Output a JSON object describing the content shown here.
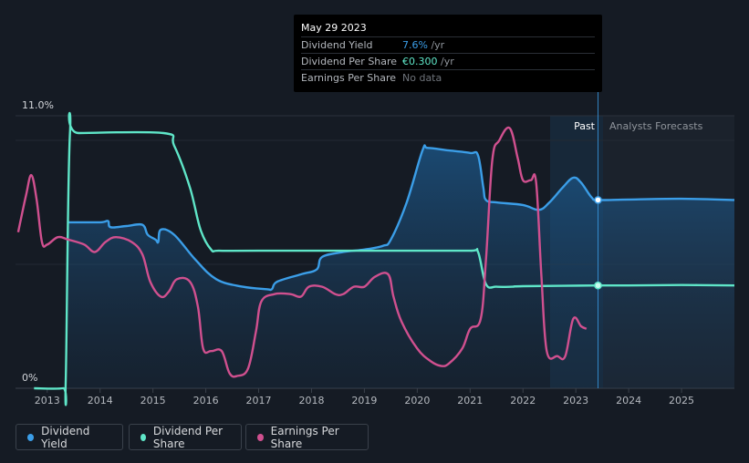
{
  "tooltip": {
    "date": "May 29 2023",
    "rows": [
      {
        "label": "Dividend Yield",
        "value": "7.6%",
        "unit": "/yr",
        "color": "#3b9ee8"
      },
      {
        "label": "Dividend Per Share",
        "value": "€0.300",
        "unit": "/yr",
        "color": "#5fe6c8"
      },
      {
        "label": "Earnings Per Share",
        "value": "No data",
        "unit": "",
        "color": "#8a8f96"
      }
    ]
  },
  "legend": [
    {
      "label": "Dividend Yield",
      "color": "#3b9ee8"
    },
    {
      "label": "Dividend Per Share",
      "color": "#5fe6c8"
    },
    {
      "label": "Earnings Per Share",
      "color": "#d0508f"
    }
  ],
  "chart_data": {
    "type": "line",
    "title": "",
    "y_top_label": "11.0%",
    "y_bottom_label": "0%",
    "ylim": [
      0,
      11
    ],
    "xlim": [
      2012.4,
      2026.0
    ],
    "x_ticks": [
      "2013",
      "2014",
      "2015",
      "2016",
      "2017",
      "2018",
      "2019",
      "2020",
      "2021",
      "2022",
      "2023",
      "2024",
      "2025"
    ],
    "region_past_label": "Past",
    "region_forecast_label": "Analysts Forecasts",
    "past_region": [
      2022.4,
      2023.42
    ],
    "marker_x": 2023.42,
    "series": [
      {
        "name": "Dividend Yield",
        "color": "#3b9ee8",
        "fill": true,
        "points": [
          [
            2013.4,
            6.7
          ],
          [
            2014.0,
            6.7
          ],
          [
            2014.15,
            6.75
          ],
          [
            2014.2,
            6.5
          ],
          [
            2014.5,
            6.55
          ],
          [
            2014.8,
            6.6
          ],
          [
            2014.9,
            6.2
          ],
          [
            2015.05,
            6.0
          ],
          [
            2015.1,
            5.9
          ],
          [
            2015.15,
            6.4
          ],
          [
            2015.4,
            6.2
          ],
          [
            2015.8,
            5.2
          ],
          [
            2016.2,
            4.4
          ],
          [
            2016.7,
            4.1
          ],
          [
            2017.15,
            4.0
          ],
          [
            2017.25,
            4.0
          ],
          [
            2017.35,
            4.3
          ],
          [
            2017.8,
            4.6
          ],
          [
            2018.1,
            4.8
          ],
          [
            2018.2,
            5.3
          ],
          [
            2018.6,
            5.5
          ],
          [
            2019.0,
            5.6
          ],
          [
            2019.35,
            5.75
          ],
          [
            2019.5,
            6.0
          ],
          [
            2019.8,
            7.5
          ],
          [
            2020.1,
            9.6
          ],
          [
            2020.2,
            9.7
          ],
          [
            2020.6,
            9.6
          ],
          [
            2021.0,
            9.5
          ],
          [
            2021.15,
            9.4
          ],
          [
            2021.25,
            8.1
          ],
          [
            2021.3,
            7.6
          ],
          [
            2021.5,
            7.5
          ],
          [
            2022.0,
            7.4
          ],
          [
            2022.3,
            7.2
          ],
          [
            2022.5,
            7.5
          ],
          [
            2022.75,
            8.1
          ],
          [
            2022.95,
            8.5
          ],
          [
            2023.1,
            8.3
          ],
          [
            2023.3,
            7.7
          ],
          [
            2023.42,
            7.6
          ],
          [
            2024.0,
            7.62
          ],
          [
            2025.0,
            7.65
          ],
          [
            2026.0,
            7.6
          ]
        ]
      },
      {
        "name": "Dividend Per Share",
        "color": "#5fe6c8",
        "fill": false,
        "points": [
          [
            2012.75,
            0
          ],
          [
            2013.3,
            0
          ],
          [
            2013.35,
            0.2
          ],
          [
            2013.43,
            10.3
          ],
          [
            2013.6,
            10.3
          ],
          [
            2015.2,
            10.3
          ],
          [
            2015.4,
            9.8
          ],
          [
            2015.7,
            8.1
          ],
          [
            2015.9,
            6.4
          ],
          [
            2016.1,
            5.6
          ],
          [
            2016.25,
            5.55
          ],
          [
            2017.0,
            5.55
          ],
          [
            2020.0,
            5.55
          ],
          [
            2021.0,
            5.55
          ],
          [
            2021.15,
            5.5
          ],
          [
            2021.3,
            4.2
          ],
          [
            2021.5,
            4.1
          ],
          [
            2021.8,
            4.1
          ],
          [
            2022.0,
            4.12
          ],
          [
            2023.42,
            4.15
          ],
          [
            2024.0,
            4.15
          ],
          [
            2025.0,
            4.17
          ],
          [
            2026.0,
            4.15
          ]
        ]
      },
      {
        "name": "Earnings Per Share",
        "color": "#d0508f",
        "fill": false,
        "points": [
          [
            2012.45,
            6.3
          ],
          [
            2012.6,
            7.8
          ],
          [
            2012.7,
            8.6
          ],
          [
            2012.8,
            7.6
          ],
          [
            2012.9,
            5.9
          ],
          [
            2013.0,
            5.8
          ],
          [
            2013.2,
            6.1
          ],
          [
            2013.4,
            6.0
          ],
          [
            2013.7,
            5.8
          ],
          [
            2013.9,
            5.5
          ],
          [
            2014.1,
            5.9
          ],
          [
            2014.3,
            6.1
          ],
          [
            2014.6,
            5.9
          ],
          [
            2014.8,
            5.4
          ],
          [
            2014.95,
            4.3
          ],
          [
            2015.15,
            3.7
          ],
          [
            2015.3,
            3.9
          ],
          [
            2015.45,
            4.4
          ],
          [
            2015.7,
            4.3
          ],
          [
            2015.85,
            3.3
          ],
          [
            2015.95,
            1.6
          ],
          [
            2016.1,
            1.5
          ],
          [
            2016.3,
            1.5
          ],
          [
            2016.45,
            0.6
          ],
          [
            2016.6,
            0.5
          ],
          [
            2016.8,
            0.8
          ],
          [
            2016.95,
            2.3
          ],
          [
            2017.05,
            3.5
          ],
          [
            2017.3,
            3.8
          ],
          [
            2017.6,
            3.8
          ],
          [
            2017.8,
            3.7
          ],
          [
            2017.95,
            4.1
          ],
          [
            2018.2,
            4.1
          ],
          [
            2018.45,
            3.8
          ],
          [
            2018.6,
            3.8
          ],
          [
            2018.8,
            4.1
          ],
          [
            2019.0,
            4.1
          ],
          [
            2019.2,
            4.5
          ],
          [
            2019.45,
            4.6
          ],
          [
            2019.55,
            3.7
          ],
          [
            2019.7,
            2.7
          ],
          [
            2020.0,
            1.6
          ],
          [
            2020.25,
            1.1
          ],
          [
            2020.45,
            0.9
          ],
          [
            2020.6,
            1.0
          ],
          [
            2020.85,
            1.6
          ],
          [
            2021.0,
            2.4
          ],
          [
            2021.2,
            2.8
          ],
          [
            2021.3,
            5.2
          ],
          [
            2021.42,
            9.2
          ],
          [
            2021.55,
            10.0
          ],
          [
            2021.75,
            10.5
          ],
          [
            2021.9,
            9.3
          ],
          [
            2022.0,
            8.4
          ],
          [
            2022.15,
            8.4
          ],
          [
            2022.25,
            8.3
          ],
          [
            2022.35,
            4.5
          ],
          [
            2022.45,
            1.5
          ],
          [
            2022.65,
            1.3
          ],
          [
            2022.8,
            1.3
          ],
          [
            2022.95,
            2.8
          ],
          [
            2023.1,
            2.5
          ],
          [
            2023.2,
            2.4
          ]
        ]
      }
    ]
  }
}
